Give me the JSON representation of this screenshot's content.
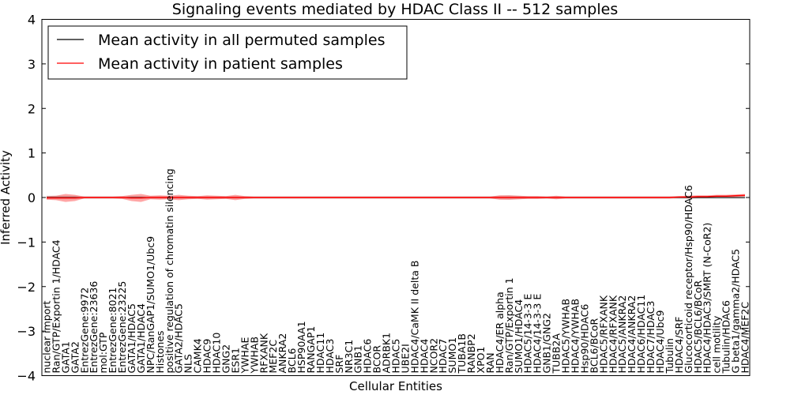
{
  "chart_data": {
    "type": "line",
    "title": "Signaling events mediated by HDAC Class II -- 512 samples",
    "xlabel": "Cellular Entities",
    "ylabel": "Inferred Activity",
    "ylim": [
      -4,
      4
    ],
    "yticks": [
      4,
      3,
      2,
      1,
      0,
      -1,
      -2,
      -3,
      -4
    ],
    "ytick_labels": [
      "4",
      "3",
      "2",
      "1",
      "0",
      "−1",
      "−2",
      "−3",
      "−4"
    ],
    "legend": {
      "placement": "top-left",
      "entries": [
        {
          "label": "Mean activity in all permuted samples",
          "color": "#000000"
        },
        {
          "label": "Mean activity in patient samples",
          "color": "#ff0000"
        }
      ]
    },
    "categories": [
      "nuclear import",
      "Ran/GTP/Exportin 1/HDAC4",
      "GATA1",
      "GATA2",
      "EntrezGene:9972",
      "EntrezGene:23636",
      "mol:GTP",
      "EntrezGene:8021",
      "EntrezGene:23225",
      "GATA1/HDAC5",
      "GATA1/HDAC4",
      "NPC/RanGAP1/SUMO1/Ubc9",
      "Histones",
      "positive regulation of chromatin silencing",
      "GATA2/HDAC5",
      "NLS",
      "CAMK4",
      "HDAC9",
      "HDAC10",
      "GNG2",
      "ESR1",
      "YWHAE",
      "YWHAB",
      "RFXANK",
      "MEF2C",
      "ANKRA2",
      "BCL6",
      "HSP90AA1",
      "RANGAP1",
      "HDAC11",
      "HDAC3",
      "SRF",
      "NR3C1",
      "GNB1",
      "HDAC6",
      "BCOR",
      "ADRBK1",
      "HDAC5",
      "UBE2I",
      "HDAC4/CaMK II delta B",
      "HDAC4",
      "NCOR2",
      "HDAC7",
      "SUMO1",
      "TUBA1B",
      "RANBP2",
      "XPO1",
      "RAN",
      "HDAC4/ER alpha",
      "Ran/GTP/Exportin 1",
      "SUMO1/HDAC4",
      "HDAC5/14-3-3 E",
      "HDAC4/14-3-3 E",
      "GNB1/GNG2",
      "TUBB2A",
      "HDAC5/YWHAB",
      "HDAC4/YWHAB",
      "Hsp90/HDAC6",
      "BCL6/BCoR",
      "HDAC5/RFXANK",
      "HDAC4/RFXANK",
      "HDAC5/ANKRA2",
      "HDAC4/ANKRA2",
      "HDAC6/HDAC11",
      "HDAC7/HDAC3",
      "HDAC4/Ubc9",
      "Tubulin",
      "HDAC4/SRF",
      "Glucocorticoid receptor/Hsp90/HDAC6",
      "HDAC5/BCL6/BCoR",
      "HDAC4/HDAC3/SMRT (N-CoR2)",
      "cell motility",
      "Tubulin/HDAC6",
      "G beta1/gamma2/HDAC5",
      "HDAC4/MEF2C"
    ],
    "series": [
      {
        "name": "Mean activity in all permuted samples",
        "color": "#000000",
        "values": [
          0,
          0,
          0,
          0,
          0,
          0,
          0,
          0,
          0,
          0,
          0,
          0,
          0,
          0,
          0,
          0,
          0,
          0,
          0,
          0,
          0,
          0,
          0,
          0,
          0,
          0,
          0,
          0,
          0,
          0,
          0,
          0,
          0,
          0,
          0,
          0,
          0,
          0,
          0,
          0,
          0,
          0,
          0,
          0,
          0,
          0,
          0,
          0,
          0,
          0,
          0,
          0,
          0,
          0,
          0,
          0,
          0,
          0,
          0,
          0,
          0,
          0,
          0,
          0,
          0,
          0,
          0,
          0,
          0,
          0,
          0,
          0,
          0,
          0,
          0
        ]
      },
      {
        "name": "Mean activity in patient samples",
        "color": "#ff0000",
        "values": [
          -0.01,
          -0.01,
          -0.01,
          -0.01,
          0,
          0,
          0,
          0,
          0,
          -0.01,
          -0.01,
          0,
          0,
          0,
          0,
          0,
          0,
          0,
          0,
          0,
          0,
          0,
          0,
          0,
          0,
          0,
          0,
          0,
          0,
          0,
          0,
          0,
          0,
          0,
          0,
          0,
          0,
          0,
          0,
          0,
          0,
          0,
          0,
          0,
          0,
          0,
          0,
          0,
          0,
          0,
          0,
          0,
          0,
          0,
          0,
          0,
          0,
          0,
          0,
          0,
          0,
          0,
          0,
          0,
          0,
          0,
          0,
          0.01,
          0.01,
          0.02,
          0.02,
          0.03,
          0.03,
          0.04,
          0.05
        ]
      }
    ],
    "patient_spread": [
      0.04,
      0.05,
      0.09,
      0.07,
      0.02,
      0.02,
      0.02,
      0.02,
      0.03,
      0.07,
      0.09,
      0.04,
      0.05,
      0.04,
      0.06,
      0.04,
      0.03,
      0.05,
      0.04,
      0.03,
      0.06,
      0.03,
      0.02,
      0.02,
      0.02,
      0.02,
      0.02,
      0.02,
      0.02,
      0.02,
      0.02,
      0.02,
      0.02,
      0.02,
      0.02,
      0.02,
      0.02,
      0.02,
      0.02,
      0.02,
      0.02,
      0.02,
      0.02,
      0.02,
      0.02,
      0.02,
      0.02,
      0.02,
      0.05,
      0.05,
      0.04,
      0.03,
      0.03,
      0.02,
      0.04,
      0.02,
      0.02,
      0.02,
      0.02,
      0.02,
      0.02,
      0.02,
      0.02,
      0.02,
      0.02,
      0.02,
      0.02,
      0.02,
      0.03,
      0.03,
      0.03,
      0.03,
      0.03,
      0.03,
      0.03
    ],
    "permuted_spread": [
      0.04,
      0.04,
      0.04,
      0.04,
      0.03,
      0.03,
      0.03,
      0.03,
      0.03,
      0.03,
      0.03,
      0.03,
      0.03,
      0.03,
      0.03,
      0.03,
      0.03,
      0.03,
      0.03,
      0.03,
      0.03,
      0.03,
      0.03,
      0.03,
      0.03,
      0.03,
      0.03,
      0.03,
      0.03,
      0.03,
      0.03,
      0.03,
      0.03,
      0.03,
      0.03,
      0.03,
      0.03,
      0.03,
      0.03,
      0.03,
      0.03,
      0.03,
      0.03,
      0.03,
      0.03,
      0.03,
      0.03,
      0.03,
      0.04,
      0.05,
      0.04,
      0.03,
      0.03,
      0.03,
      0.03,
      0.03,
      0.03,
      0.03,
      0.03,
      0.03,
      0.03,
      0.03,
      0.03,
      0.03,
      0.03,
      0.03,
      0.03,
      0.03,
      0.03,
      0.03,
      0.03,
      0.03,
      0.03,
      0.03,
      0.03
    ]
  }
}
